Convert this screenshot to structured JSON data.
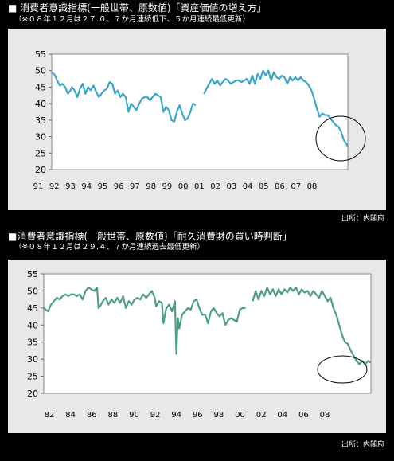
{
  "charts": [
    {
      "heading": "■ 消費者意識指標(一般世帯、原数値)「資産価値の増え方」",
      "subheading": "（※０８年１２月は２７.０、７か月連続低下、５か月連続最低更新）",
      "source": "出所：内閣府"
    },
    {
      "heading": "■消費者意識指標(一般世帯、原数値)「耐久消費財の買い時判断」",
      "subheading": "（※０８年１２月は２９.４、７か月連続過去最低更新）",
      "source": "出所：内閣府"
    }
  ],
  "chart_data": [
    {
      "type": "line",
      "ylim": [
        20,
        55
      ],
      "yticks": [
        20,
        25,
        30,
        35,
        40,
        45,
        50,
        55
      ],
      "x_tick_labels": [
        "91",
        "92",
        "93",
        "94",
        "95",
        "96",
        "97",
        "98",
        "99",
        "00",
        "01",
        "02",
        "03",
        "04",
        "05",
        "06",
        "07",
        "08"
      ],
      "line_color": "#3aa6c8",
      "series": [
        {
          "values": [
            [
              0,
              49.5
            ],
            [
              0.4,
              48.8
            ],
            [
              0.8,
              47
            ],
            [
              1.2,
              45.5
            ],
            [
              1.6,
              46
            ],
            [
              2.0,
              45
            ],
            [
              2.4,
              43
            ],
            [
              2.8,
              44
            ],
            [
              3.0,
              45
            ],
            [
              3.4,
              44
            ],
            [
              3.8,
              42
            ],
            [
              4.2,
              44.5
            ],
            [
              4.6,
              46
            ],
            [
              5.0,
              43
            ],
            [
              5.4,
              45
            ],
            [
              5.8,
              44
            ],
            [
              6.2,
              45.5
            ],
            [
              6.5,
              44
            ],
            [
              7.0,
              42
            ],
            [
              7.4,
              43
            ],
            [
              7.8,
              44
            ],
            [
              8.2,
              44.5
            ],
            [
              8.6,
              46.5
            ],
            [
              9.0,
              46
            ],
            [
              9.4,
              43
            ],
            [
              9.8,
              44
            ],
            [
              10.2,
              42
            ],
            [
              10.6,
              43
            ],
            [
              11.0,
              42
            ],
            [
              11.4,
              37.5
            ],
            [
              11.8,
              40
            ],
            [
              12.2,
              39
            ],
            [
              12.6,
              38
            ],
            [
              13.0,
              40
            ],
            [
              13.4,
              41.5
            ],
            [
              13.8,
              42
            ],
            [
              14.2,
              42
            ],
            [
              14.6,
              41
            ],
            [
              15.0,
              42
            ],
            [
              15.4,
              43
            ],
            [
              15.8,
              42.5
            ],
            [
              16.2,
              42
            ],
            [
              16.6,
              37.5
            ],
            [
              17.0,
              39
            ],
            [
              17.4,
              38
            ],
            [
              17.8,
              35
            ],
            [
              18.2,
              34.5
            ],
            [
              18.6,
              37.5
            ],
            [
              19.0,
              39.5
            ],
            [
              19.4,
              37
            ],
            [
              19.8,
              35
            ],
            [
              20.2,
              35.5
            ],
            [
              20.6,
              37.5
            ],
            [
              21.0,
              40
            ],
            [
              21.4,
              39.5
            ]
          ]
        },
        {
          "values": [
            [
              22.6,
              43
            ],
            [
              23.0,
              44.5
            ],
            [
              23.4,
              46
            ],
            [
              23.8,
              47.5
            ],
            [
              24.2,
              46
            ],
            [
              24.6,
              47
            ],
            [
              25.0,
              45.5
            ],
            [
              25.4,
              46.5
            ],
            [
              25.8,
              47.5
            ],
            [
              26.2,
              47
            ],
            [
              26.6,
              46
            ],
            [
              27.0,
              46.5
            ],
            [
              27.4,
              47
            ],
            [
              27.8,
              47
            ],
            [
              28.2,
              46.5
            ],
            [
              28.6,
              47
            ],
            [
              29.0,
              47.5
            ],
            [
              29.4,
              46
            ],
            [
              29.8,
              48.5
            ],
            [
              30.2,
              46
            ],
            [
              30.6,
              49
            ],
            [
              31.0,
              47.5
            ],
            [
              31.4,
              50
            ],
            [
              31.8,
              48.5
            ],
            [
              32.2,
              50
            ],
            [
              32.6,
              47
            ],
            [
              33.0,
              49.5
            ],
            [
              33.4,
              48
            ],
            [
              33.8,
              47.5
            ],
            [
              34.2,
              48.5
            ],
            [
              34.6,
              48
            ],
            [
              35.0,
              46
            ],
            [
              35.4,
              48
            ],
            [
              35.8,
              47
            ],
            [
              36.2,
              48
            ],
            [
              36.6,
              47
            ],
            [
              37.0,
              48
            ],
            [
              37.4,
              47
            ],
            [
              37.8,
              46.5
            ],
            [
              38.2,
              45.5
            ],
            [
              38.6,
              44
            ],
            [
              39.0,
              41.5
            ],
            [
              39.4,
              38.5
            ],
            [
              39.8,
              36
            ],
            [
              40.2,
              37
            ],
            [
              40.6,
              36.5
            ],
            [
              41.0,
              36.5
            ],
            [
              41.4,
              35.5
            ],
            [
              41.8,
              34.5
            ],
            [
              42.2,
              33.5
            ],
            [
              42.6,
              33
            ],
            [
              43.0,
              31.5
            ],
            [
              43.4,
              29
            ],
            [
              43.8,
              27.8
            ],
            [
              44.0,
              27
            ]
          ]
        }
      ]
    },
    {
      "type": "line",
      "ylim": [
        20,
        55
      ],
      "yticks": [
        20,
        25,
        30,
        35,
        40,
        45,
        50,
        55
      ],
      "x_tick_labels": [
        "82",
        "84",
        "86",
        "88",
        "90",
        "92",
        "94",
        "96",
        "98",
        "00",
        "02",
        "04",
        "06",
        "08"
      ],
      "line_color": "#4e9e86",
      "series": [
        {
          "values": [
            [
              0,
              45
            ],
            [
              0.3,
              44.5
            ],
            [
              0.6,
              44
            ],
            [
              1.0,
              46
            ],
            [
              1.4,
              47
            ],
            [
              1.8,
              48
            ],
            [
              2.2,
              47.5
            ],
            [
              2.6,
              48.5
            ],
            [
              3.0,
              49
            ],
            [
              3.4,
              48.5
            ],
            [
              3.8,
              49
            ],
            [
              4.2,
              49
            ],
            [
              4.6,
              48.5
            ],
            [
              5.0,
              49
            ],
            [
              5.4,
              47.5
            ],
            [
              5.8,
              50
            ],
            [
              6.2,
              51
            ],
            [
              6.6,
              50.5
            ],
            [
              7.0,
              50
            ],
            [
              7.4,
              51
            ],
            [
              7.6,
              45
            ],
            [
              7.8,
              45.5
            ],
            [
              8.2,
              47
            ],
            [
              8.6,
              48
            ],
            [
              9.0,
              46
            ],
            [
              9.4,
              47.5
            ],
            [
              9.8,
              46.5
            ],
            [
              10.2,
              48
            ],
            [
              10.6,
              46.5
            ],
            [
              11.0,
              48.5
            ],
            [
              11.4,
              45
            ],
            [
              11.8,
              47
            ],
            [
              12.2,
              46
            ],
            [
              12.6,
              47.5
            ],
            [
              13.0,
              48
            ],
            [
              13.4,
              47.5
            ],
            [
              13.8,
              49
            ],
            [
              14.2,
              48
            ],
            [
              14.6,
              49
            ],
            [
              15.0,
              50
            ],
            [
              15.4,
              48
            ],
            [
              15.6,
              45.5
            ],
            [
              16.0,
              47
            ],
            [
              16.4,
              46.5
            ],
            [
              16.6,
              40.5
            ],
            [
              17.0,
              45
            ],
            [
              17.4,
              46
            ],
            [
              17.8,
              44
            ],
            [
              18.2,
              47
            ],
            [
              18.4,
              31.5
            ],
            [
              18.6,
              42
            ],
            [
              18.8,
              39
            ],
            [
              19.2,
              43
            ],
            [
              19.6,
              44
            ],
            [
              20.0,
              45
            ],
            [
              20.4,
              44.5
            ],
            [
              20.8,
              47
            ],
            [
              21.2,
              47.5
            ],
            [
              21.6,
              45
            ],
            [
              22.0,
              43
            ],
            [
              22.4,
              43
            ],
            [
              22.8,
              40.5
            ],
            [
              23.2,
              44
            ],
            [
              23.6,
              45
            ],
            [
              24.0,
              43.5
            ],
            [
              24.4,
              42.5
            ],
            [
              24.8,
              43.5
            ],
            [
              25.2,
              40
            ],
            [
              25.6,
              41.5
            ],
            [
              26.0,
              42
            ],
            [
              26.4,
              41.5
            ],
            [
              26.8,
              41
            ],
            [
              27.2,
              44.5
            ],
            [
              27.6,
              45
            ],
            [
              28.0,
              45
            ]
          ]
        },
        {
          "values": [
            [
              29.0,
              47
            ],
            [
              29.4,
              50
            ],
            [
              29.8,
              47.5
            ],
            [
              30.2,
              50
            ],
            [
              30.6,
              48.5
            ],
            [
              31.0,
              51
            ],
            [
              31.4,
              49
            ],
            [
              31.8,
              50.5
            ],
            [
              32.2,
              48.5
            ],
            [
              32.6,
              50.5
            ],
            [
              33.0,
              49
            ],
            [
              33.4,
              50.5
            ],
            [
              33.8,
              49.5
            ],
            [
              34.2,
              51
            ],
            [
              34.6,
              50
            ],
            [
              35.0,
              51
            ],
            [
              35.4,
              49
            ],
            [
              35.8,
              50.5
            ],
            [
              36.2,
              49.5
            ],
            [
              36.6,
              50
            ],
            [
              37.0,
              48.5
            ],
            [
              37.4,
              50
            ],
            [
              37.8,
              49
            ],
            [
              38.2,
              48
            ],
            [
              38.6,
              50
            ],
            [
              39.0,
              48.5
            ],
            [
              39.4,
              47
            ],
            [
              39.8,
              48
            ],
            [
              40.2,
              45
            ],
            [
              40.6,
              43
            ],
            [
              41.0,
              40
            ],
            [
              41.4,
              37
            ],
            [
              41.8,
              35
            ],
            [
              42.2,
              34.5
            ],
            [
              42.6,
              32.5
            ],
            [
              43.0,
              31
            ],
            [
              43.4,
              29.5
            ],
            [
              43.8,
              28.5
            ],
            [
              44.2,
              29.5
            ],
            [
              44.6,
              28.5
            ],
            [
              45.0,
              29.5
            ],
            [
              45.4,
              29
            ]
          ]
        }
      ]
    }
  ]
}
